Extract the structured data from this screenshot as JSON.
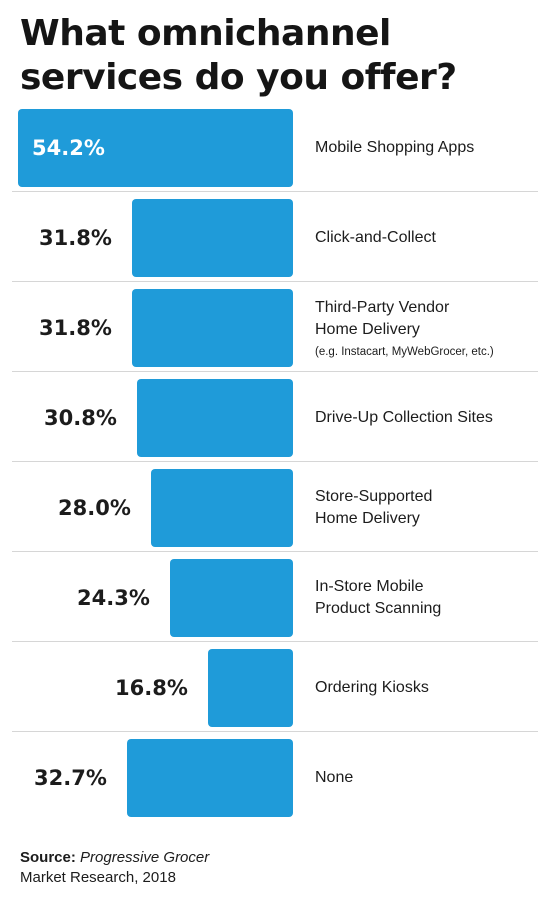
{
  "title_lines": [
    "What omnichannel",
    "services do you offer?"
  ],
  "source": {
    "prefix": "Source:",
    "publisher": "Progressive Grocer",
    "rest": "Market Research, 2018"
  },
  "colors": {
    "bar": "#1f9bd9",
    "text": "#1c1c1c",
    "divider": "#d6d6d6"
  },
  "chart_data": {
    "type": "bar",
    "orientation": "horizontal",
    "title": "What omnichannel services do you offer?",
    "xlim": [
      0,
      54.2
    ],
    "grid": false,
    "legend": "none",
    "categories": [
      {
        "lines": [
          "Mobile Shopping Apps"
        ],
        "note": ""
      },
      {
        "lines": [
          "Click-and-Collect"
        ],
        "note": ""
      },
      {
        "lines": [
          "Third-Party Vendor",
          "Home Delivery"
        ],
        "note": "(e.g. Instacart, MyWebGrocer, etc.)"
      },
      {
        "lines": [
          "Drive-Up Collection Sites"
        ],
        "note": ""
      },
      {
        "lines": [
          "Store-Supported",
          "Home Delivery"
        ],
        "note": ""
      },
      {
        "lines": [
          "In-Store Mobile",
          "Product Scanning"
        ],
        "note": ""
      },
      {
        "lines": [
          "Ordering Kiosks"
        ],
        "note": ""
      },
      {
        "lines": [
          "None"
        ],
        "note": ""
      }
    ],
    "values": [
      54.2,
      31.8,
      31.8,
      30.8,
      28.0,
      24.3,
      16.8,
      32.7
    ],
    "value_labels": [
      "54.2%",
      "31.8%",
      "31.8%",
      "30.8%",
      "28.0%",
      "24.3%",
      "16.8%",
      "32.7%"
    ]
  }
}
